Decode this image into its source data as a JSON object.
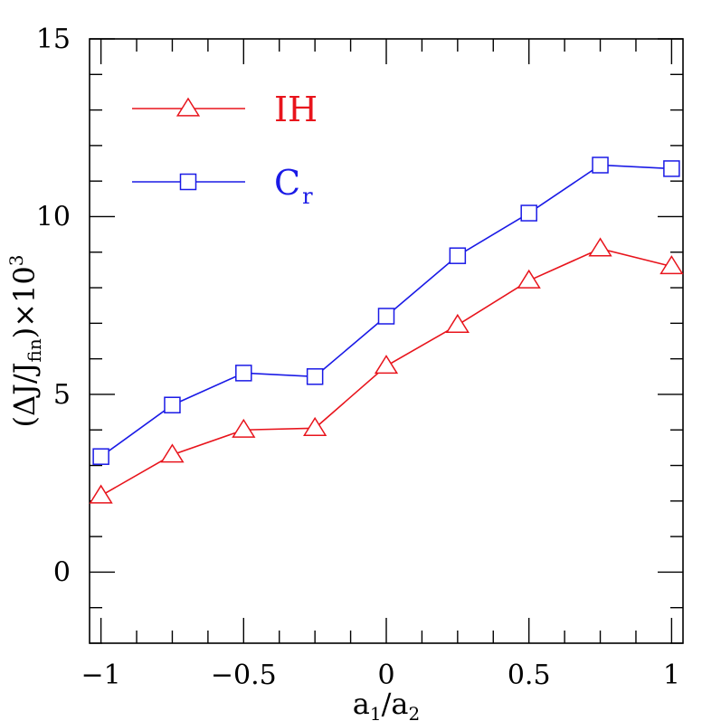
{
  "chart_data": {
    "type": "line",
    "x": [
      -1,
      -0.75,
      -0.5,
      -0.25,
      0,
      0.25,
      0.5,
      0.75,
      1
    ],
    "series": [
      {
        "name": "IH",
        "marker": "triangle",
        "color": "#e8141c",
        "values": [
          2.15,
          3.3,
          4.0,
          4.05,
          5.8,
          6.95,
          8.2,
          9.1,
          8.6
        ]
      },
      {
        "name": "C",
        "name_sub": "r",
        "marker": "square",
        "color": "#1a1ae6",
        "values": [
          3.25,
          4.7,
          5.6,
          5.5,
          7.2,
          8.9,
          10.1,
          11.45,
          11.35
        ]
      }
    ],
    "xlim": [
      -1.04,
      1.04
    ],
    "ylim": [
      -2,
      15
    ],
    "x_ticks": [
      {
        "value": -1,
        "label": "−1"
      },
      {
        "value": -0.5,
        "label": "−0.5"
      },
      {
        "value": 0,
        "label": "0"
      },
      {
        "value": 0.5,
        "label": "0.5"
      },
      {
        "value": 1,
        "label": "1"
      }
    ],
    "y_ticks": [
      {
        "value": 0,
        "label": "0"
      },
      {
        "value": 5,
        "label": "5"
      },
      {
        "value": 10,
        "label": "10"
      },
      {
        "value": 15,
        "label": "15"
      }
    ],
    "x_minor_step": 0.125,
    "y_minor_step": 1,
    "xlabel": {
      "main": "a",
      "sub1": "1",
      "sep": "/a",
      "sub2": "2"
    },
    "ylabel": {
      "pre": "(ΔJ/J",
      "sub": "fin",
      "post": ")×10",
      "sup": "3"
    },
    "legend_position": "top-left",
    "grid": false
  }
}
